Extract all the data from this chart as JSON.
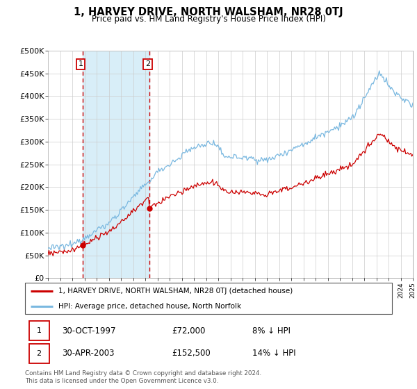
{
  "title": "1, HARVEY DRIVE, NORTH WALSHAM, NR28 0TJ",
  "subtitle": "Price paid vs. HM Land Registry's House Price Index (HPI)",
  "legend_entry1": "1, HARVEY DRIVE, NORTH WALSHAM, NR28 0TJ (detached house)",
  "legend_entry2": "HPI: Average price, detached house, North Norfolk",
  "transaction1_date": "30-OCT-1997",
  "transaction1_price": 72000,
  "transaction1_label": "8% ↓ HPI",
  "transaction2_date": "30-APR-2003",
  "transaction2_price": 152500,
  "transaction2_label": "14% ↓ HPI",
  "footer": "Contains HM Land Registry data © Crown copyright and database right 2024.\nThis data is licensed under the Open Government Licence v3.0.",
  "hpi_color": "#7ab8e0",
  "price_color": "#cc0000",
  "vline_color": "#cc0000",
  "shade_color": "#d8eef8",
  "ylim_min": 0,
  "ylim_max": 500000,
  "ytick_step": 50000,
  "xstart": 1995,
  "xend": 2025,
  "t1_year": 1997.833,
  "t2_year": 2003.333,
  "price1": 72000,
  "price2": 152500
}
